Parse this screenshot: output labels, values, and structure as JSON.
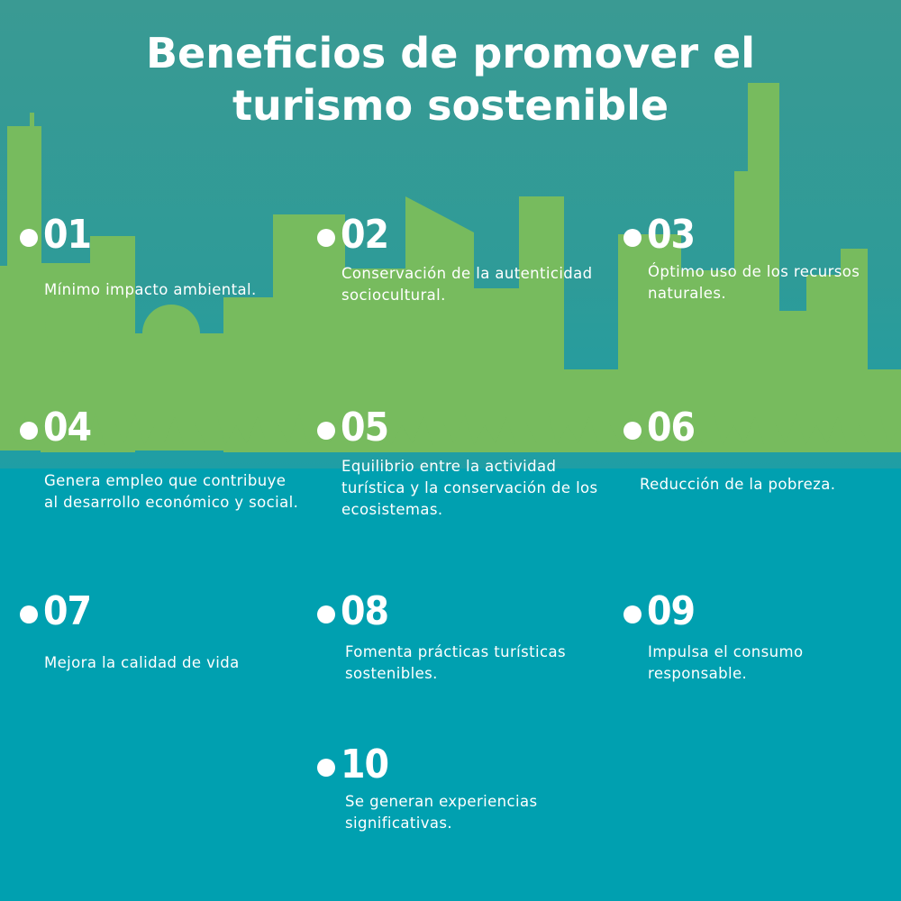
{
  "title": {
    "line1": "Beneficios de promover el",
    "line2": "turismo sostenible"
  },
  "colors": {
    "background": "#00a0b0",
    "sky": "#2e9b98",
    "city": "#77bb5e",
    "text": "#ffffff"
  },
  "items": [
    {
      "number": "01",
      "text": "Mínimo impacto ambiental."
    },
    {
      "number": "02",
      "text": "Conservación de la autenticidad\nsociocultural."
    },
    {
      "number": "03",
      "text": "Óptimo uso de los recursos\nnaturales."
    },
    {
      "number": "04",
      "text": "Genera empleo que contribuye\nal desarrollo económico y social."
    },
    {
      "number": "05",
      "text": "Equilibrio entre la actividad\nturística y la conservación de los\necosistemas."
    },
    {
      "number": "06",
      "text": "Reducción de la pobreza."
    },
    {
      "number": "07",
      "text": "Mejora la calidad de vida"
    },
    {
      "number": "08",
      "text": "Fomenta prácticas turísticas\nsostenibles."
    },
    {
      "number": "09",
      "text": "Impulsa el consumo\nresponsable."
    },
    {
      "number": "10",
      "text": "Se generan experiencias\nsignificativas."
    }
  ]
}
